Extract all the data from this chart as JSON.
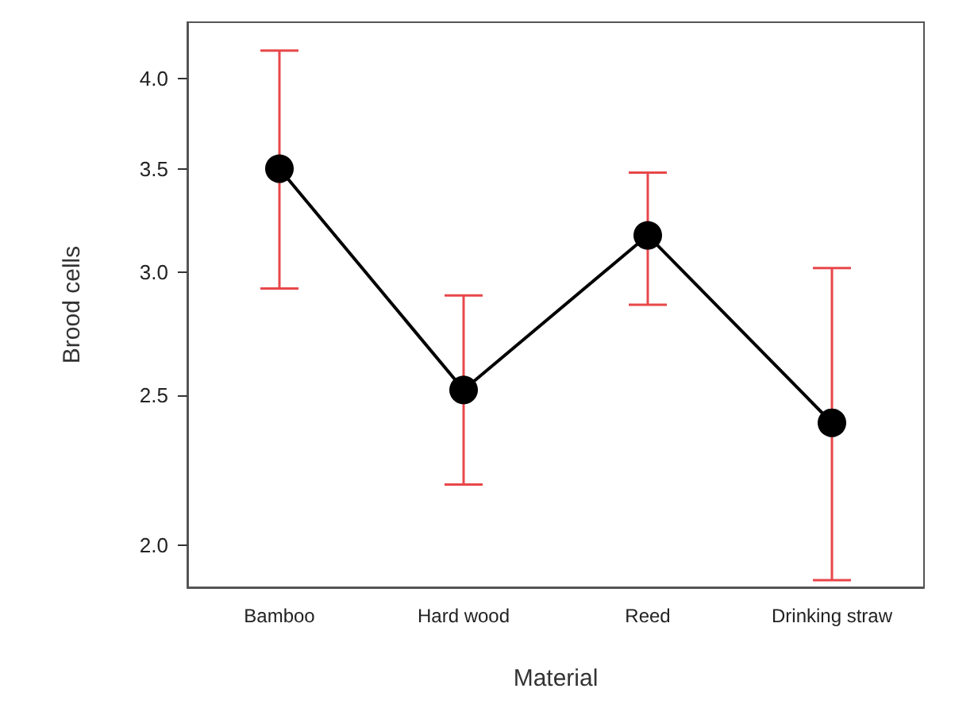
{
  "chart_data": {
    "type": "line",
    "xlabel": "Material",
    "ylabel": "Brood cells",
    "categories": [
      "Bamboo",
      "Hard wood",
      "Reed",
      "Drinking straw"
    ],
    "series": [
      {
        "color": "#000000",
        "values": [
          3.5,
          2.52,
          3.17,
          2.4
        ],
        "errors": [
          [
            2.93,
            4.17
          ],
          [
            2.19,
            2.9
          ],
          [
            2.86,
            3.48
          ],
          [
            1.9,
            3.02
          ]
        ]
      }
    ],
    "log": "y",
    "ylim": [
      1.88,
      4.35
    ],
    "yticks": [
      {
        "value": 2,
        "label": "2.0"
      },
      {
        "value": 2.5,
        "label": "2.5"
      },
      {
        "value": 3,
        "label": "3.0"
      },
      {
        "value": 3.5,
        "label": "3.5"
      },
      {
        "value": 4,
        "label": "4.0"
      }
    ],
    "marker": "circle",
    "line_style": "solid",
    "grid": false
  }
}
